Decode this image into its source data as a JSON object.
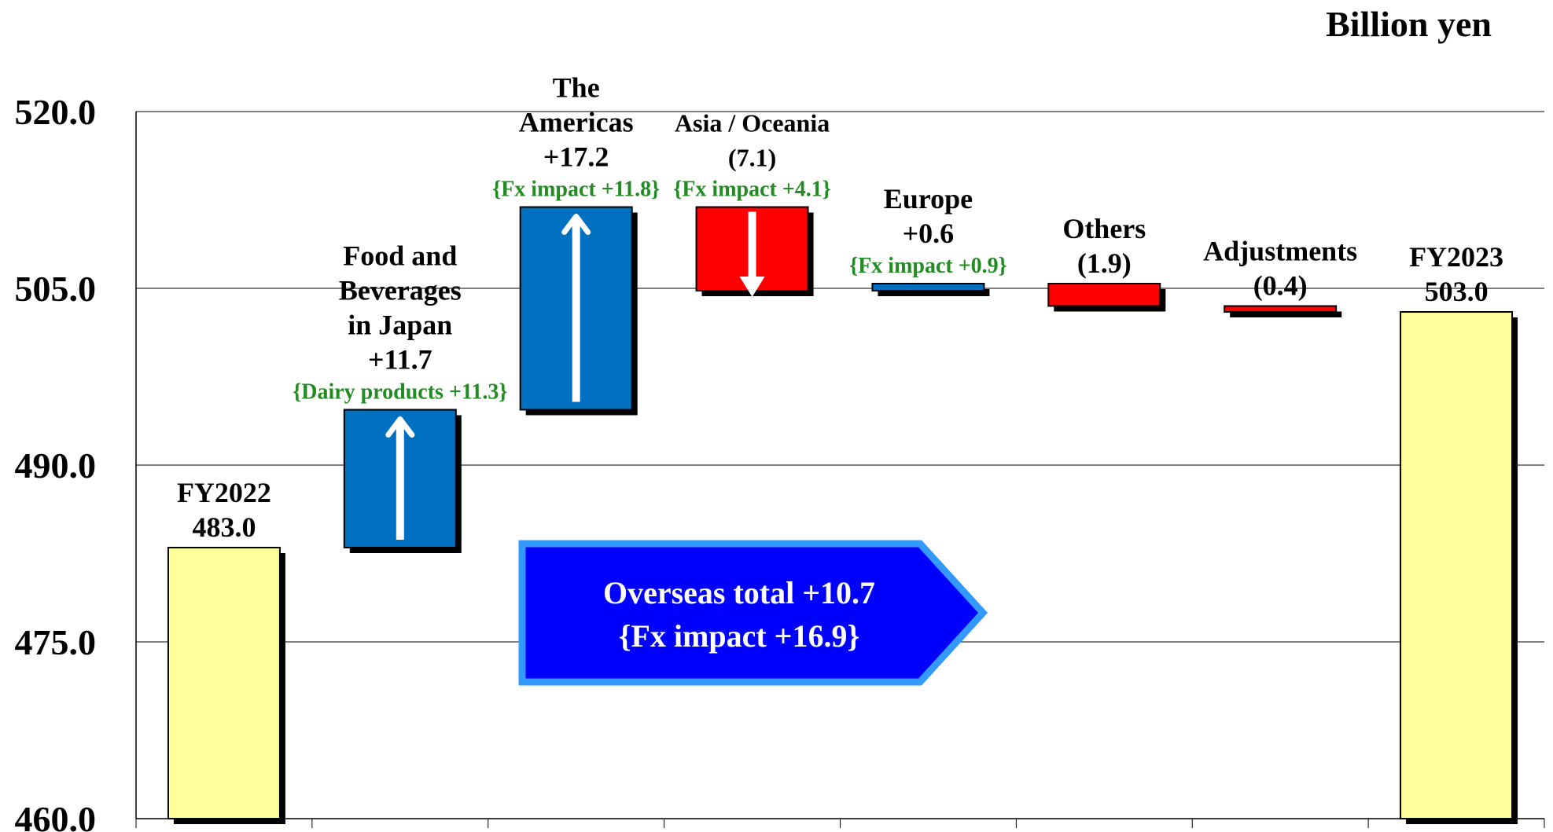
{
  "unit_label": "Billion yen",
  "chart_data": {
    "type": "waterfall",
    "ylim": [
      460.0,
      520.0
    ],
    "yticks": [
      "460.0",
      "475.0",
      "490.0",
      "505.0",
      "520.0"
    ],
    "grid": true,
    "colors": {
      "total": "#FFFF99",
      "increase": "#0070C0",
      "decrease": "#FF0000",
      "shadow": "#000000",
      "banner": "#0000FF",
      "banner_border": "#3399FF",
      "note": "#228B22"
    },
    "steps": [
      {
        "kind": "total",
        "start": 460.0,
        "end": 483.0,
        "label_lines": [
          "FY2022",
          "483.0"
        ],
        "note": ""
      },
      {
        "kind": "increase",
        "start": 483.0,
        "end": 494.7,
        "label_lines": [
          "Food and",
          "Beverages",
          "in Japan",
          "+11.7"
        ],
        "note": "{Dairy products +11.3}",
        "arrow": "up"
      },
      {
        "kind": "increase",
        "start": 494.7,
        "end": 511.9,
        "label_lines": [
          "The",
          "Americas",
          "+17.2"
        ],
        "note": "{Fx impact +11.8}",
        "arrow": "up"
      },
      {
        "kind": "decrease",
        "start": 511.9,
        "end": 504.8,
        "label_lines": [
          "Asia / Oceania",
          "(7.1)"
        ],
        "note": "{Fx impact +4.1}",
        "arrow": "down"
      },
      {
        "kind": "increase",
        "start": 504.8,
        "end": 505.4,
        "label_lines": [
          "Europe",
          "+0.6"
        ],
        "note": "{Fx impact +0.9}"
      },
      {
        "kind": "decrease",
        "start": 505.4,
        "end": 503.5,
        "label_lines": [
          "Others",
          "(1.9)"
        ],
        "note": ""
      },
      {
        "kind": "decrease",
        "start": 503.5,
        "end": 503.0,
        "label_lines": [
          "Adjustments",
          "(0.4)"
        ],
        "note": ""
      },
      {
        "kind": "total",
        "start": 460.0,
        "end": 503.0,
        "label_lines": [
          "FY2023",
          "503.0"
        ],
        "note": ""
      }
    ],
    "callout": {
      "line1": "Overseas total   +10.7",
      "line2": "{Fx impact +16.9}"
    }
  }
}
